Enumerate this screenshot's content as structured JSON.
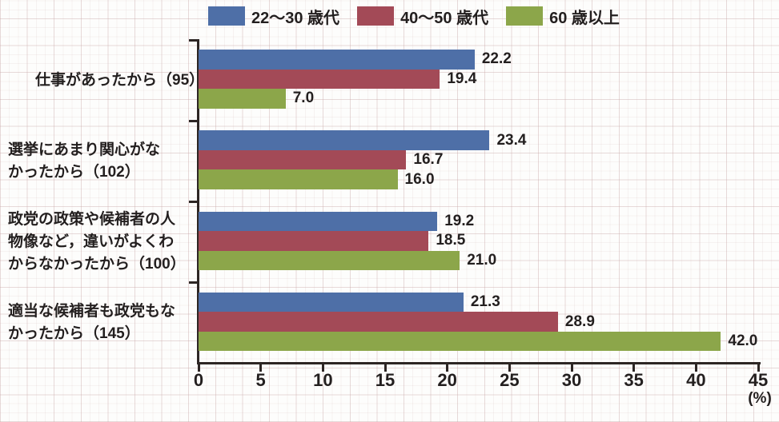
{
  "chart_data": {
    "type": "bar",
    "orientation": "horizontal",
    "categories": [
      {
        "lines": [
          "仕事があったから（95）"
        ],
        "n": 95
      },
      {
        "lines": [
          "選挙にあまり関心がな",
          "かったから（102）"
        ],
        "n": 102
      },
      {
        "lines": [
          "政党の政策や候補者の人",
          "物像など，違いがよくわ",
          "からなかったから（100）"
        ],
        "n": 100
      },
      {
        "lines": [
          "適当な候補者も政党もな",
          "かったから（145）"
        ],
        "n": 145
      }
    ],
    "series": [
      {
        "name": "22〜30 歳代",
        "color": "#4e6fa7",
        "values": [
          22.2,
          23.4,
          19.2,
          21.3
        ]
      },
      {
        "name": "40〜50 歳代",
        "color": "#a34a57",
        "values": [
          19.4,
          16.7,
          18.5,
          28.9
        ]
      },
      {
        "name": "60 歳以上",
        "color": "#8ca64a",
        "values": [
          7.0,
          16.0,
          21.0,
          42.0
        ]
      }
    ],
    "xlim": [
      0,
      45
    ],
    "xticks": [
      0,
      5,
      10,
      15,
      20,
      25,
      30,
      35,
      40,
      45
    ],
    "xlabel": "(%)",
    "value_labels": true,
    "legend_position": "top",
    "grid": "graph-paper-background"
  },
  "colors": {
    "axis": "#2d2624",
    "text": "#231f1f",
    "background": "#fdfdfc"
  }
}
